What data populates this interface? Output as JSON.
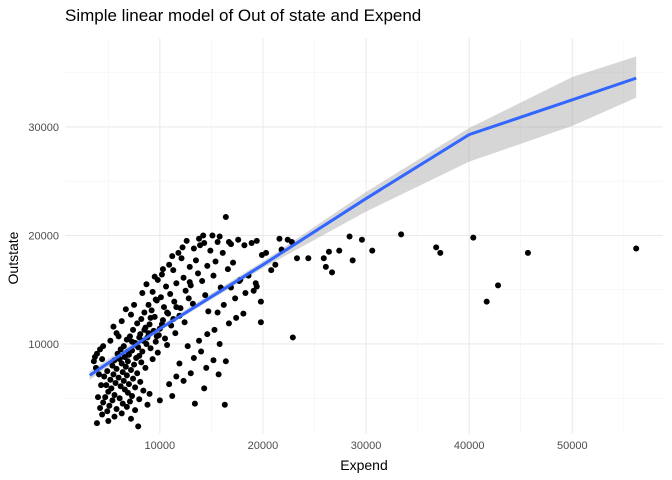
{
  "chart_data": {
    "type": "scatter",
    "title": "Simple linear model of Out of state and Expend",
    "xlabel": "Expend",
    "ylabel": "Outstate",
    "xlim": [
      800,
      58800
    ],
    "ylim": [
      1700,
      38200
    ],
    "x_ticks": [
      10000,
      20000,
      30000,
      40000,
      50000
    ],
    "x_tick_labels": [
      "10000",
      "20000",
      "30000",
      "40000",
      "50000"
    ],
    "y_ticks": [
      10000,
      20000,
      30000
    ],
    "y_tick_labels": [
      "10000",
      "20000",
      "30000"
    ],
    "grid": true,
    "legend": "none",
    "colors": {
      "points": "#000000",
      "line": "#3366ff",
      "ribbon": "#999999",
      "grid": "#ebebeb"
    },
    "fit": {
      "method": "lm",
      "x": [
        3200,
        10000,
        20000,
        30000,
        40000,
        50000,
        56200
      ],
      "y": [
        7100,
        11400,
        17300,
        23400,
        29300,
        32500,
        34500
      ],
      "lower": [
        6700,
        11200,
        17000,
        22200,
        26800,
        30100,
        32700
      ],
      "upper": [
        7500,
        11700,
        17600,
        24000,
        29900,
        34600,
        36500
      ]
    },
    "series": [
      {
        "points": [
          [
            16400,
            21700
          ],
          [
            15100,
            20000
          ],
          [
            13800,
            19700
          ],
          [
            12600,
            19500
          ],
          [
            15600,
            19400
          ],
          [
            14300,
            19300
          ],
          [
            16900,
            19200
          ],
          [
            17600,
            19600
          ],
          [
            18200,
            19100
          ],
          [
            13300,
            18800
          ],
          [
            11800,
            18400
          ],
          [
            14900,
            18600
          ],
          [
            16100,
            18400
          ],
          [
            12100,
            17900
          ],
          [
            13500,
            17700
          ],
          [
            15400,
            17600
          ],
          [
            17100,
            17500
          ],
          [
            10900,
            17300
          ],
          [
            12900,
            17100
          ],
          [
            14600,
            17200
          ],
          [
            11300,
            16800
          ],
          [
            16600,
            16900
          ],
          [
            13700,
            16500
          ],
          [
            10200,
            16400
          ],
          [
            15200,
            16300
          ],
          [
            12300,
            16100
          ],
          [
            9800,
            15900
          ],
          [
            14100,
            15800
          ],
          [
            11600,
            15600
          ],
          [
            13000,
            15400
          ],
          [
            10600,
            15300
          ],
          [
            15900,
            15200
          ],
          [
            12500,
            14900
          ],
          [
            9300,
            14800
          ],
          [
            11000,
            14600
          ],
          [
            14400,
            14500
          ],
          [
            10100,
            14300
          ],
          [
            12800,
            14200
          ],
          [
            9700,
            14000
          ],
          [
            11400,
            13900
          ],
          [
            13200,
            13700
          ],
          [
            8900,
            13600
          ],
          [
            10400,
            13400
          ],
          [
            12000,
            13300
          ],
          [
            9200,
            13100
          ],
          [
            14700,
            13000
          ],
          [
            8500,
            12900
          ],
          [
            10800,
            12800
          ],
          [
            11900,
            12600
          ],
          [
            9500,
            12500
          ],
          [
            8200,
            12300
          ],
          [
            10300,
            12200
          ],
          [
            12400,
            12000
          ],
          [
            7800,
            11900
          ],
          [
            9000,
            11800
          ],
          [
            11100,
            11700
          ],
          [
            8600,
            11500
          ],
          [
            10000,
            11400
          ],
          [
            7400,
            11300
          ],
          [
            9400,
            11200
          ],
          [
            11500,
            11000
          ],
          [
            8100,
            10900
          ],
          [
            9900,
            10800
          ],
          [
            7100,
            10700
          ],
          [
            8800,
            10600
          ],
          [
            10500,
            10500
          ],
          [
            6800,
            10400
          ],
          [
            8400,
            10300
          ],
          [
            9600,
            10200
          ],
          [
            7600,
            10100
          ],
          [
            8700,
            10000
          ],
          [
            10700,
            9900
          ],
          [
            6500,
            9800
          ],
          [
            7900,
            9700
          ],
          [
            9100,
            9600
          ],
          [
            6200,
            9500
          ],
          [
            7300,
            9400
          ],
          [
            8300,
            9300
          ],
          [
            9800,
            9200
          ],
          [
            5900,
            9100
          ],
          [
            7000,
            9000
          ],
          [
            8000,
            8900
          ],
          [
            6600,
            8800
          ],
          [
            7700,
            8700
          ],
          [
            9300,
            8600
          ],
          [
            5600,
            8500
          ],
          [
            6900,
            8400
          ],
          [
            8200,
            8300
          ],
          [
            6300,
            8200
          ],
          [
            7500,
            8100
          ],
          [
            5400,
            8000
          ],
          [
            6700,
            7900
          ],
          [
            8600,
            7800
          ],
          [
            5800,
            7700
          ],
          [
            7200,
            7600
          ],
          [
            4900,
            7500
          ],
          [
            6400,
            7400
          ],
          [
            7800,
            7300
          ],
          [
            5500,
            7200
          ],
          [
            6800,
            7100
          ],
          [
            4600,
            7000
          ],
          [
            6000,
            6900
          ],
          [
            7400,
            6800
          ],
          [
            5200,
            6700
          ],
          [
            6500,
            6600
          ],
          [
            8100,
            6500
          ],
          [
            5700,
            6400
          ],
          [
            7000,
            6300
          ],
          [
            4800,
            6200
          ],
          [
            6200,
            6100
          ],
          [
            7600,
            6000
          ],
          [
            5300,
            5900
          ],
          [
            6600,
            5800
          ],
          [
            8400,
            5700
          ],
          [
            5000,
            5600
          ],
          [
            6900,
            5500
          ],
          [
            9000,
            5400
          ],
          [
            5600,
            5300
          ],
          [
            7300,
            5200
          ],
          [
            4700,
            5100
          ],
          [
            6100,
            5000
          ],
          [
            8000,
            4900
          ],
          [
            5400,
            4800
          ],
          [
            7100,
            4700
          ],
          [
            4500,
            4600
          ],
          [
            6400,
            4500
          ],
          [
            8800,
            4400
          ],
          [
            5100,
            4300
          ],
          [
            6800,
            4200
          ],
          [
            4200,
            4100
          ],
          [
            5800,
            4000
          ],
          [
            7600,
            3900
          ],
          [
            4900,
            3800
          ],
          [
            6300,
            3600
          ],
          [
            4400,
            3500
          ],
          [
            5600,
            3300
          ],
          [
            7200,
            3100
          ],
          [
            5000,
            2900
          ],
          [
            3900,
            2700
          ],
          [
            7900,
            2400
          ],
          [
            3600,
            8400
          ],
          [
            3900,
            9100
          ],
          [
            4200,
            9500
          ],
          [
            3800,
            7800
          ],
          [
            4300,
            6200
          ],
          [
            4000,
            5100
          ],
          [
            4400,
            8600
          ],
          [
            4100,
            7200
          ],
          [
            3700,
            8800
          ],
          [
            4500,
            9800
          ],
          [
            5200,
            10300
          ],
          [
            5800,
            11000
          ],
          [
            6300,
            12100
          ],
          [
            5500,
            11600
          ],
          [
            6700,
            13200
          ],
          [
            7200,
            12700
          ],
          [
            6000,
            10700
          ],
          [
            7500,
            13600
          ],
          [
            8300,
            14700
          ],
          [
            8700,
            15500
          ],
          [
            9500,
            16200
          ],
          [
            10300,
            16900
          ],
          [
            11200,
            18100
          ],
          [
            12200,
            18900
          ],
          [
            13900,
            19100
          ],
          [
            15800,
            19900
          ],
          [
            14200,
            20000
          ],
          [
            16700,
            19400
          ],
          [
            18900,
            19300
          ],
          [
            19400,
            19500
          ],
          [
            21600,
            19700
          ],
          [
            22400,
            19600
          ],
          [
            21800,
            18700
          ],
          [
            20300,
            18400
          ],
          [
            23300,
            17900
          ],
          [
            24400,
            17900
          ],
          [
            22800,
            19400
          ],
          [
            19900,
            18200
          ],
          [
            21200,
            17300
          ],
          [
            20800,
            16800
          ],
          [
            18600,
            16300
          ],
          [
            17800,
            15900
          ],
          [
            19300,
            15600
          ],
          [
            16900,
            15200
          ],
          [
            18300,
            14700
          ],
          [
            17300,
            14200
          ],
          [
            16200,
            13600
          ],
          [
            19800,
            13900
          ],
          [
            15600,
            12900
          ],
          [
            17400,
            12400
          ],
          [
            16700,
            11900
          ],
          [
            15300,
            11300
          ],
          [
            18100,
            12800
          ],
          [
            14600,
            10900
          ],
          [
            13800,
            10300
          ],
          [
            15800,
            10000
          ],
          [
            12700,
            9800
          ],
          [
            14000,
            9300
          ],
          [
            13300,
            8700
          ],
          [
            11900,
            8200
          ],
          [
            15200,
            8500
          ],
          [
            14500,
            7800
          ],
          [
            13000,
            7300
          ],
          [
            11600,
            7000
          ],
          [
            16400,
            8400
          ],
          [
            15700,
            7200
          ],
          [
            12300,
            6600
          ],
          [
            10900,
            6300
          ],
          [
            14300,
            5900
          ],
          [
            13400,
            4500
          ],
          [
            16300,
            4400
          ],
          [
            11200,
            5200
          ],
          [
            10000,
            4800
          ],
          [
            19100,
            14900
          ],
          [
            19400,
            15300
          ],
          [
            22900,
            10600
          ],
          [
            19800,
            12000
          ],
          [
            17700,
            15800
          ],
          [
            25900,
            17900
          ],
          [
            26400,
            18500
          ],
          [
            26100,
            17100
          ],
          [
            26700,
            16600
          ],
          [
            27400,
            18600
          ],
          [
            28700,
            17700
          ],
          [
            28400,
            19900
          ],
          [
            29600,
            19600
          ],
          [
            30600,
            18600
          ],
          [
            33400,
            20100
          ],
          [
            36800,
            18900
          ],
          [
            37200,
            18400
          ],
          [
            40400,
            19800
          ],
          [
            41700,
            13900
          ],
          [
            42800,
            15400
          ],
          [
            45700,
            18400
          ],
          [
            56200,
            18800
          ],
          [
            9100,
            12400
          ],
          [
            8500,
            11300
          ],
          [
            7700,
            9900
          ],
          [
            10700,
            12900
          ],
          [
            11600,
            13400
          ],
          [
            12900,
            15700
          ],
          [
            9600,
            14100
          ],
          [
            8000,
            10600
          ],
          [
            6900,
            9300
          ],
          [
            6100,
            8600
          ],
          [
            7300,
            10200
          ],
          [
            8900,
            11000
          ],
          [
            10200,
            11800
          ],
          [
            9700,
            10700
          ],
          [
            11300,
            12300
          ]
        ]
      }
    ]
  }
}
